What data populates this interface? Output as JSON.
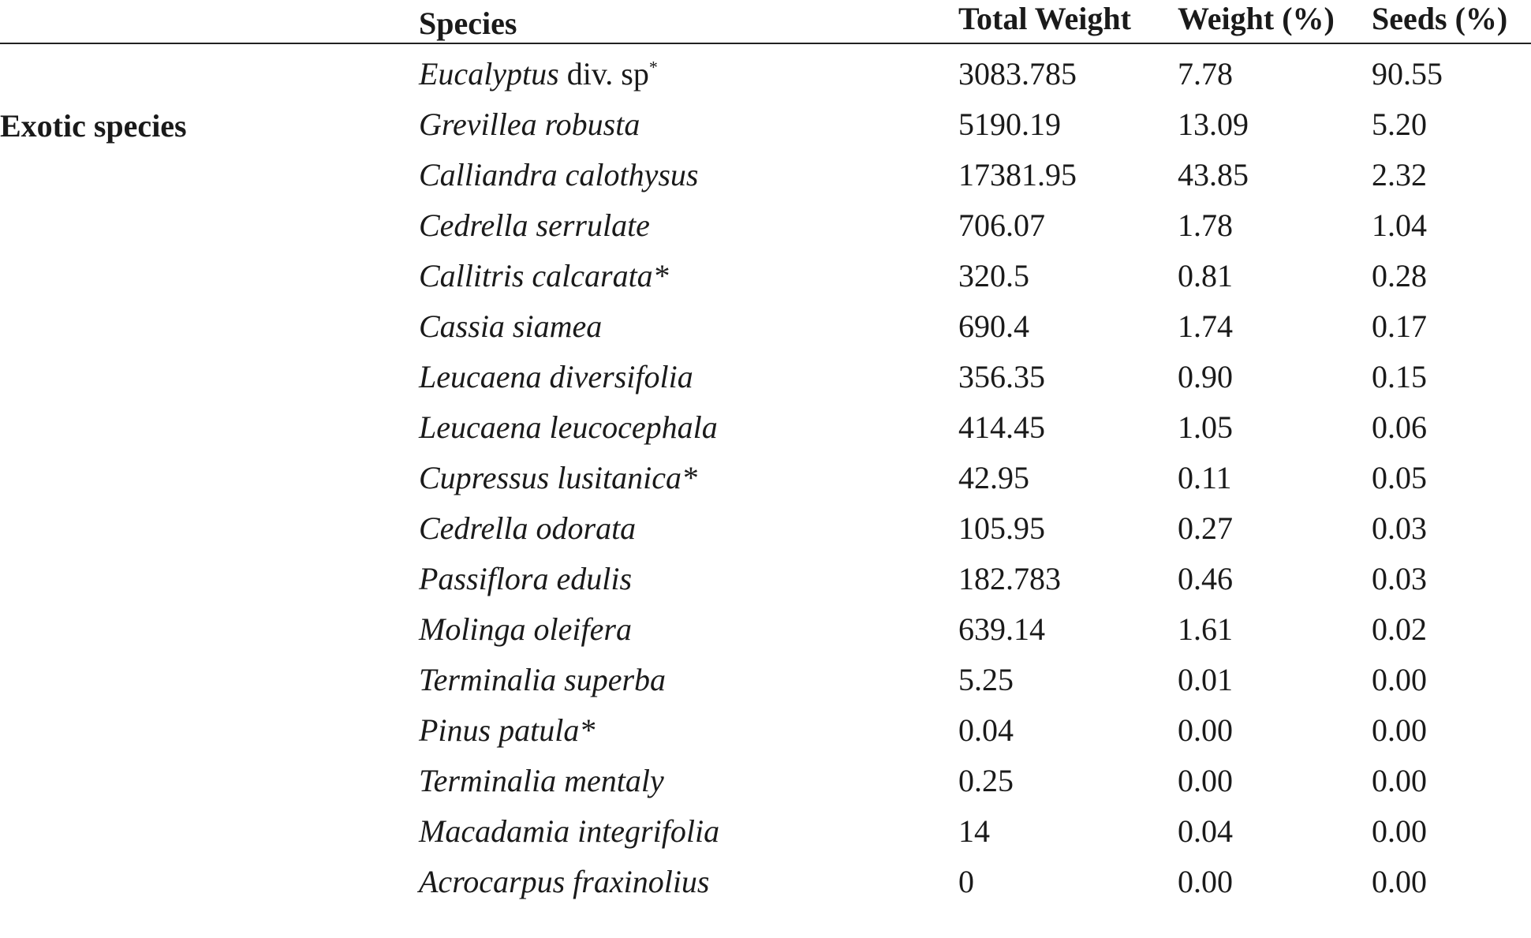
{
  "table": {
    "headers": {
      "species": "Species",
      "total_weight": "Total Weight",
      "weight_pct": "Weight (%)",
      "seeds_pct": "Seeds (%)"
    },
    "group_label": "Exotic species",
    "rows": [
      {
        "species": "Eucalyptus",
        "species_rest": " div. sp",
        "species_sup": "*",
        "total": "3083.785",
        "weight": "7.78",
        "seeds": "90.55"
      },
      {
        "species": "Grevillea robusta",
        "species_rest": "",
        "species_sup": "",
        "total": "5190.19",
        "weight": "13.09",
        "seeds": "5.20"
      },
      {
        "species": "Calliandra calothysus",
        "species_rest": "",
        "species_sup": "",
        "total": "17381.95",
        "weight": "43.85",
        "seeds": "2.32"
      },
      {
        "species": "Cedrella serrulate",
        "species_rest": "",
        "species_sup": "",
        "total": "706.07",
        "weight": "1.78",
        "seeds": "1.04"
      },
      {
        "species": "Callitris calcarata*",
        "species_rest": "",
        "species_sup": "",
        "total": "320.5",
        "weight": "0.81",
        "seeds": "0.28"
      },
      {
        "species": "Cassia siamea",
        "species_rest": "",
        "species_sup": "",
        "total": "690.4",
        "weight": "1.74",
        "seeds": "0.17"
      },
      {
        "species": "Leucaena diversifolia",
        "species_rest": "",
        "species_sup": "",
        "total": "356.35",
        "weight": "0.90",
        "seeds": "0.15"
      },
      {
        "species": "Leucaena leucocephala",
        "species_rest": "",
        "species_sup": "",
        "total": "414.45",
        "weight": "1.05",
        "seeds": "0.06"
      },
      {
        "species": "Cupressus lusitanica*",
        "species_rest": "",
        "species_sup": "",
        "total": "42.95",
        "weight": "0.11",
        "seeds": "0.05"
      },
      {
        "species": "Cedrella odorata",
        "species_rest": "",
        "species_sup": "",
        "total": "105.95",
        "weight": "0.27",
        "seeds": "0.03"
      },
      {
        "species": "Passiflora edulis",
        "species_rest": "",
        "species_sup": "",
        "total": "182.783",
        "weight": "0.46",
        "seeds": "0.03"
      },
      {
        "species": "Molinga oleifera",
        "species_rest": "",
        "species_sup": "",
        "total": "639.14",
        "weight": "1.61",
        "seeds": "0.02"
      },
      {
        "species": "Terminalia superba",
        "species_rest": "",
        "species_sup": "",
        "total": "5.25",
        "weight": "0.01",
        "seeds": "0.00"
      },
      {
        "species": "Pinus patula*",
        "species_rest": "",
        "species_sup": "",
        "total": "0.04",
        "weight": "0.00",
        "seeds": "0.00"
      },
      {
        "species": "Terminalia mentaly",
        "species_rest": "",
        "species_sup": "",
        "total": "0.25",
        "weight": "0.00",
        "seeds": "0.00"
      },
      {
        "species": "Macadamia integrifolia",
        "species_rest": "",
        "species_sup": "",
        "total": "14",
        "weight": "0.04",
        "seeds": "0.00"
      },
      {
        "species": "Acrocarpus fraxinolius",
        "species_rest": "",
        "species_sup": "",
        "total": "0",
        "weight": "0.00",
        "seeds": "0.00"
      }
    ]
  }
}
